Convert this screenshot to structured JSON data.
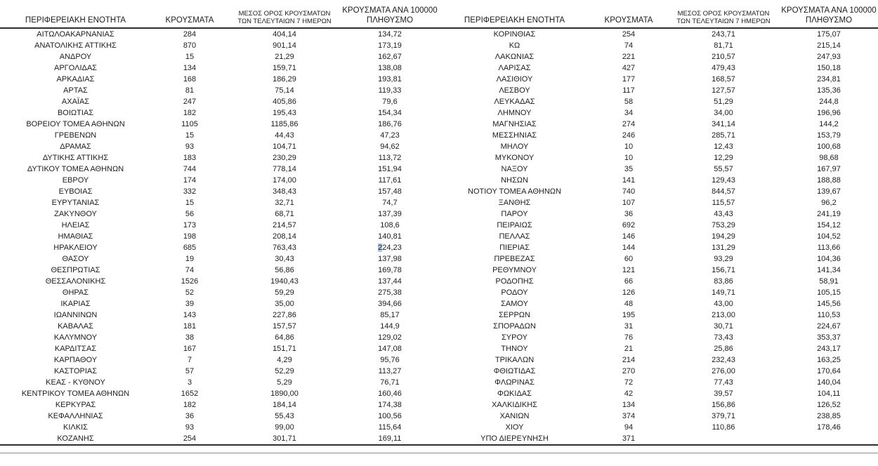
{
  "columns": {
    "region": "ΠΕΡΙΦΕΡΕΙΑΚΗ ΕΝΟΤΗΤΑ",
    "cases": "ΚΡΟΥΣΜΑΤΑ",
    "avg7_line1": "ΜΕΣΟΣ ΟΡΟΣ ΚΡΟΥΣΜΑΤΩΝ",
    "avg7_line2": "ΤΩΝ ΤΕΛΕΥΤΑΙΩΝ 7 ΗΜΕΡΩΝ",
    "per100k_line1": "ΚΡΟΥΣΜΑΤΑ ΑΝΑ 100000",
    "per100k_line2": "ΠΛΗΘΥΣΜΟ"
  },
  "left_rows": [
    [
      "ΑΙΤΩΛΟΑΚΑΡΝΑΝΙΑΣ",
      "284",
      "404,14",
      "134,72"
    ],
    [
      "ΑΝΑΤΟΛΙΚΗΣ ΑΤΤΙΚΗΣ",
      "870",
      "901,14",
      "173,19"
    ],
    [
      "ΑΝΔΡΟΥ",
      "15",
      "21,29",
      "162,67"
    ],
    [
      "ΑΡΓΟΛΙΔΑΣ",
      "134",
      "159,71",
      "138,08"
    ],
    [
      "ΑΡΚΑΔΙΑΣ",
      "168",
      "186,29",
      "193,81"
    ],
    [
      "ΑΡΤΑΣ",
      "81",
      "75,14",
      "119,33"
    ],
    [
      "ΑΧΑΪΑΣ",
      "247",
      "405,86",
      "79,6"
    ],
    [
      "ΒΟΙΩΤΙΑΣ",
      "182",
      "195,43",
      "154,34"
    ],
    [
      "ΒΟΡΕΙΟΥ ΤΟΜΕΑ ΑΘΗΝΩΝ",
      "1105",
      "1185,86",
      "186,76"
    ],
    [
      "ΓΡΕΒΕΝΩΝ",
      "15",
      "44,43",
      "47,23"
    ],
    [
      "ΔΡΑΜΑΣ",
      "93",
      "104,71",
      "94,62"
    ],
    [
      "ΔΥΤΙΚΗΣ ΑΤΤΙΚΗΣ",
      "183",
      "230,29",
      "113,72"
    ],
    [
      "ΔΥΤΙΚΟΥ ΤΟΜΕΑ ΑΘΗΝΩΝ",
      "744",
      "778,14",
      "151,94"
    ],
    [
      "ΕΒΡΟΥ",
      "174",
      "174,00",
      "117,61"
    ],
    [
      "ΕΥΒΟΙΑΣ",
      "332",
      "348,43",
      "157,48"
    ],
    [
      "ΕΥΡΥΤΑΝΙΑΣ",
      "15",
      "32,71",
      "74,7"
    ],
    [
      "ΖΑΚΥΝΘΟΥ",
      "56",
      "68,71",
      "137,39"
    ],
    [
      "ΗΛΕΙΑΣ",
      "173",
      "214,57",
      "108,6"
    ],
    [
      "ΗΜΑΘΙΑΣ",
      "198",
      "208,14",
      "140,81"
    ],
    [
      "ΗΡΑΚΛΕΙΟΥ",
      "685",
      "763,43",
      "224,23"
    ],
    [
      "ΘΑΣΟΥ",
      "19",
      "30,43",
      "137,98"
    ],
    [
      "ΘΕΣΠΡΩΤΙΑΣ",
      "74",
      "56,86",
      "169,78"
    ],
    [
      "ΘΕΣΣΑΛΟΝΙΚΗΣ",
      "1526",
      "1940,43",
      "137,44"
    ],
    [
      "ΘΗΡΑΣ",
      "52",
      "59,29",
      "275,38"
    ],
    [
      "ΙΚΑΡΙΑΣ",
      "39",
      "35,00",
      "394,66"
    ],
    [
      "ΙΩΑΝΝΙΝΩΝ",
      "143",
      "227,86",
      "85,17"
    ],
    [
      "ΚΑΒΑΛΑΣ",
      "181",
      "157,57",
      "144,9"
    ],
    [
      "ΚΑΛΥΜΝΟΥ",
      "38",
      "64,86",
      "129,02"
    ],
    [
      "ΚΑΡΔΙΤΣΑΣ",
      "167",
      "151,71",
      "147,08"
    ],
    [
      "ΚΑΡΠΑΘΟΥ",
      "7",
      "4,29",
      "95,76"
    ],
    [
      "ΚΑΣΤΟΡΙΑΣ",
      "57",
      "52,29",
      "113,27"
    ],
    [
      "ΚΕΑΣ - ΚΥΘΝΟΥ",
      "3",
      "5,29",
      "76,71"
    ],
    [
      "ΚΕΝΤΡΙΚΟΥ ΤΟΜΕΑ ΑΘΗΝΩΝ",
      "1652",
      "1890,00",
      "160,46"
    ],
    [
      "ΚΕΡΚΥΡΑΣ",
      "182",
      "184,14",
      "174,38"
    ],
    [
      "ΚΕΦΑΛΛΗΝΙΑΣ",
      "36",
      "55,43",
      "100,56"
    ],
    [
      "ΚΙΛΚΙΣ",
      "93",
      "99,00",
      "115,64"
    ],
    [
      "ΚΟΖΑΝΗΣ",
      "254",
      "301,71",
      "169,11"
    ]
  ],
  "right_rows": [
    [
      "ΚΟΡΙΝΘΙΑΣ",
      "254",
      "243,71",
      "175,07"
    ],
    [
      "ΚΩ",
      "74",
      "81,71",
      "215,14"
    ],
    [
      "ΛΑΚΩΝΙΑΣ",
      "221",
      "210,57",
      "247,93"
    ],
    [
      "ΛΑΡΙΣΑΣ",
      "427",
      "479,43",
      "150,18"
    ],
    [
      "ΛΑΣΙΘΙΟΥ",
      "177",
      "168,57",
      "234,81"
    ],
    [
      "ΛΕΣΒΟΥ",
      "117",
      "127,57",
      "135,36"
    ],
    [
      "ΛΕΥΚΑΔΑΣ",
      "58",
      "51,29",
      "244,8"
    ],
    [
      "ΛΗΜΝΟΥ",
      "34",
      "34,00",
      "196,96"
    ],
    [
      "ΜΑΓΝΗΣΙΑΣ",
      "274",
      "341,14",
      "144,2"
    ],
    [
      "ΜΕΣΣΗΝΙΑΣ",
      "246",
      "285,71",
      "153,79"
    ],
    [
      "ΜΗΛΟΥ",
      "10",
      "12,43",
      "100,68"
    ],
    [
      "ΜΥΚΟΝΟΥ",
      "10",
      "12,29",
      "98,68"
    ],
    [
      "ΝΑΞΟΥ",
      "35",
      "55,57",
      "167,97"
    ],
    [
      "ΝΗΣΩΝ",
      "141",
      "129,43",
      "188,88"
    ],
    [
      "ΝΟΤΙΟΥ ΤΟΜΕΑ ΑΘΗΝΩΝ",
      "740",
      "844,57",
      "139,67"
    ],
    [
      "ΞΑΝΘΗΣ",
      "107",
      "115,57",
      "96,2"
    ],
    [
      "ΠΑΡΟΥ",
      "36",
      "43,43",
      "241,19"
    ],
    [
      "ΠΕΙΡΑΙΩΣ",
      "692",
      "753,29",
      "154,12"
    ],
    [
      "ΠΕΛΛΑΣ",
      "146",
      "194,29",
      "104,52"
    ],
    [
      "ΠΙΕΡΙΑΣ",
      "144",
      "131,29",
      "113,66"
    ],
    [
      "ΠΡΕΒΕΖΑΣ",
      "60",
      "93,29",
      "104,36"
    ],
    [
      "ΡΕΘΥΜΝΟΥ",
      "121",
      "156,71",
      "141,34"
    ],
    [
      "ΡΟΔΟΠΗΣ",
      "66",
      "83,86",
      "58,91"
    ],
    [
      "ΡΟΔΟΥ",
      "126",
      "149,71",
      "105,15"
    ],
    [
      "ΣΑΜΟΥ",
      "48",
      "43,00",
      "145,56"
    ],
    [
      "ΣΕΡΡΩΝ",
      "195",
      "213,00",
      "110,53"
    ],
    [
      "ΣΠΟΡΑΔΩΝ",
      "31",
      "30,71",
      "224,67"
    ],
    [
      "ΣΥΡΟΥ",
      "76",
      "73,43",
      "353,37"
    ],
    [
      "ΤΗΝΟΥ",
      "21",
      "25,86",
      "243,17"
    ],
    [
      "ΤΡΙΚΑΛΩΝ",
      "214",
      "232,43",
      "163,25"
    ],
    [
      "ΦΘΙΩΤΙΔΑΣ",
      "270",
      "276,00",
      "170,64"
    ],
    [
      "ΦΛΩΡΙΝΑΣ",
      "72",
      "77,43",
      "140,04"
    ],
    [
      "ΦΩΚΙΔΑΣ",
      "42",
      "39,57",
      "104,11"
    ],
    [
      "ΧΑΛΚΙΔΙΚΗΣ",
      "134",
      "156,86",
      "126,52"
    ],
    [
      "ΧΑΝΙΩΝ",
      "374",
      "379,71",
      "238,85"
    ],
    [
      "ΧΙΟΥ",
      "94",
      "110,86",
      "178,46"
    ],
    [
      "ΥΠΟ ΔΙΕΡΕΥΝΗΣΗ",
      "371",
      "",
      ""
    ]
  ],
  "selection": {
    "table": "left",
    "row": 19,
    "col": 3,
    "chars": 1
  },
  "colors": {
    "text": "#1c1c1c",
    "rule_dark": "#2e2e2e",
    "rule_light": "#8a8a8a",
    "selection_highlight": "#aac9e8"
  }
}
